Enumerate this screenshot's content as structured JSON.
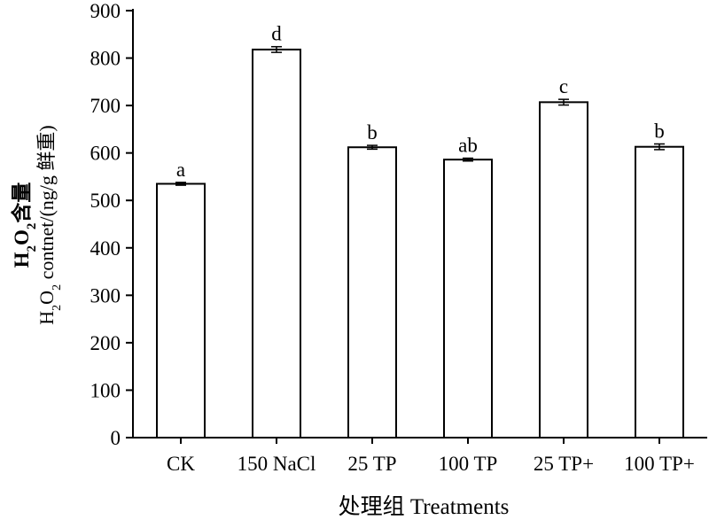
{
  "chart_data": {
    "type": "bar",
    "categories": [
      "CK",
      "150 NaCl",
      "25 TP",
      "100 TP",
      "25 TP+",
      "100 TP+"
    ],
    "values": [
      535,
      818,
      612,
      586,
      707,
      613
    ],
    "errors": [
      3,
      6,
      4,
      3,
      6,
      6
    ],
    "significance": [
      "a",
      "d",
      "b",
      "ab",
      "c",
      "b"
    ],
    "ylim": [
      0,
      900
    ],
    "yticks": [
      0,
      100,
      200,
      300,
      400,
      500,
      600,
      700,
      800,
      900
    ],
    "xlabel": "处理组  Treatments",
    "ylabel_line1_parts": [
      "H",
      "2",
      "O",
      "2",
      "含量"
    ],
    "ylabel_line2_parts": [
      "H",
      "2",
      "O",
      "2",
      " contnet/(ng/g 鲜重)"
    ],
    "grid": false,
    "legend": "none",
    "bar_fill": "#ffffff",
    "bar_stroke": "#000000"
  }
}
